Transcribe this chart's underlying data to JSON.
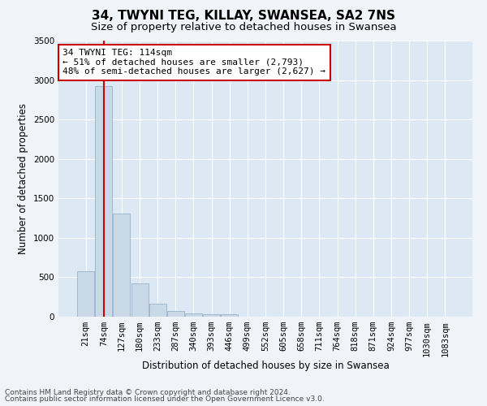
{
  "title": "34, TWYNI TEG, KILLAY, SWANSEA, SA2 7NS",
  "subtitle": "Size of property relative to detached houses in Swansea",
  "xlabel": "Distribution of detached houses by size in Swansea",
  "ylabel": "Number of detached properties",
  "footer_line1": "Contains HM Land Registry data © Crown copyright and database right 2024.",
  "footer_line2": "Contains public sector information licensed under the Open Government Licence v3.0.",
  "bar_labels": [
    "21sqm",
    "74sqm",
    "127sqm",
    "180sqm",
    "233sqm",
    "287sqm",
    "340sqm",
    "393sqm",
    "446sqm",
    "499sqm",
    "552sqm",
    "605sqm",
    "658sqm",
    "711sqm",
    "764sqm",
    "818sqm",
    "871sqm",
    "924sqm",
    "977sqm",
    "1030sqm",
    "1083sqm"
  ],
  "bar_values": [
    580,
    2920,
    1310,
    420,
    160,
    75,
    45,
    35,
    30,
    0,
    0,
    0,
    0,
    0,
    0,
    0,
    0,
    0,
    0,
    0,
    0
  ],
  "bar_color": "#c9d9e8",
  "bar_edge_color": "#a0b8cf",
  "grid_color": "#ffffff",
  "plot_bg_color": "#dce9f5",
  "fig_bg_color": "#f0f4f8",
  "vline_x": 1,
  "vline_color": "#cc0000",
  "annotation_text": "34 TWYNI TEG: 114sqm\n← 51% of detached houses are smaller (2,793)\n48% of semi-detached houses are larger (2,627) →",
  "annotation_box_color": "#ffffff",
  "annotation_border_color": "#cc0000",
  "ylim": [
    0,
    3500
  ],
  "yticks": [
    0,
    500,
    1000,
    1500,
    2000,
    2500,
    3000,
    3500
  ],
  "title_fontsize": 11,
  "subtitle_fontsize": 9.5,
  "axis_label_fontsize": 8.5,
  "tick_fontsize": 7.5,
  "annotation_fontsize": 8,
  "footer_fontsize": 6.5
}
